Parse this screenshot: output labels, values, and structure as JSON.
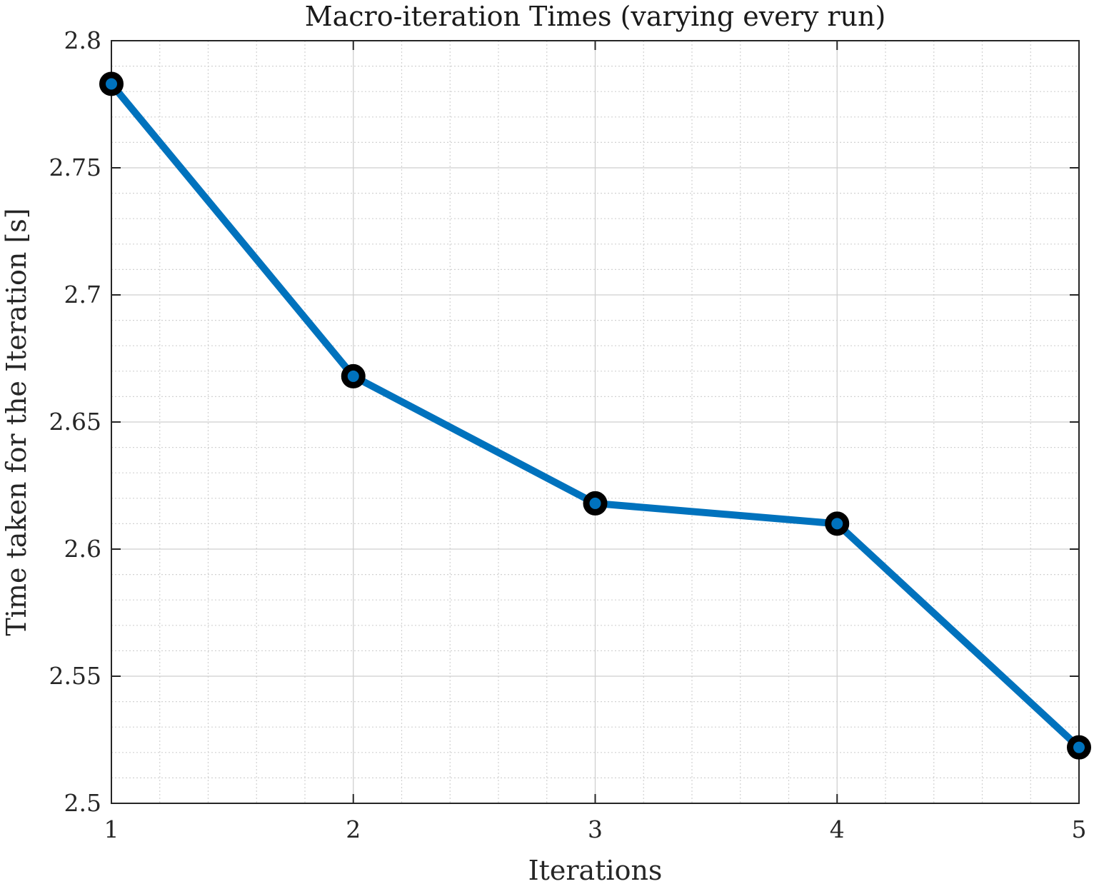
{
  "chart_data": {
    "type": "line",
    "title": "Macro-iteration Times (varying every run)",
    "xlabel": "Iterations",
    "ylabel": "Time taken for the Iteration [s]",
    "x": [
      1,
      2,
      3,
      4,
      5
    ],
    "series": [
      {
        "values": [
          2.783,
          2.668,
          2.618,
          2.61,
          2.522
        ]
      }
    ],
    "xlim": [
      1,
      5
    ],
    "ylim": [
      2.5,
      2.8
    ],
    "xticks": [
      1,
      2,
      3,
      4,
      5
    ],
    "xtick_labels": [
      "1",
      "2",
      "3",
      "4",
      "5"
    ],
    "yticks": [
      2.5,
      2.55,
      2.6,
      2.65,
      2.7,
      2.75,
      2.8
    ],
    "ytick_labels": [
      "2.5",
      "2.55",
      "2.6",
      "2.65",
      "2.7",
      "2.75",
      "2.8"
    ],
    "grid": true,
    "minor_grid": true,
    "line_color": "#0072BD",
    "marker_edge_color": "#000000",
    "marker": "circle"
  }
}
